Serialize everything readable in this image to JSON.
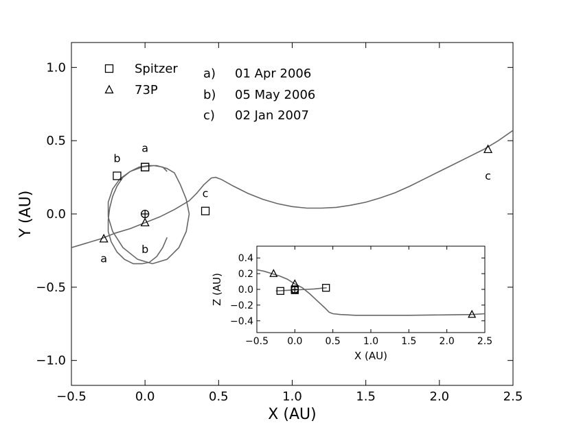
{
  "chart_data": [
    {
      "type": "line",
      "xlabel": "X (AU)",
      "ylabel": "Y (AU)",
      "xlim": [
        -0.5,
        2.5
      ],
      "ylim": [
        -1.17,
        1.17
      ],
      "xticks": [
        -0.5,
        0.0,
        0.5,
        1.0,
        1.5,
        2.0,
        2.5
      ],
      "xtick_labels": [
        "−0.5",
        "0.0",
        "0.5",
        "1.0",
        "1.5",
        "2.0",
        "2.5"
      ],
      "yticks": [
        -1.0,
        -0.5,
        0.0,
        0.5,
        1.0
      ],
      "ytick_labels": [
        "−1.0",
        "−0.5",
        "0.0",
        "0.5",
        "1.0"
      ],
      "grid": false,
      "legend": {
        "placement": "top-left",
        "entries": [
          {
            "marker": "square",
            "label": "Spitzer"
          },
          {
            "marker": "triangle",
            "label": "73P"
          }
        ],
        "dates": [
          {
            "key": "a)",
            "date": "01 Apr 2006"
          },
          {
            "key": "b)",
            "date": "05 May 2006"
          },
          {
            "key": "c)",
            "date": "02 Jan 2007"
          }
        ]
      },
      "series": [
        {
          "marker": "square",
          "x": [
            0.0,
            0.0,
            -0.19,
            0.41
          ],
          "y": [
            0.32,
            0.32,
            0.26,
            0.02
          ],
          "labels": [
            "a",
            "a",
            "b",
            "c"
          ]
        },
        {
          "marker": "triangle",
          "x": [
            -0.28,
            0.0,
            2.33
          ],
          "y": [
            -0.17,
            -0.06,
            0.44
          ],
          "labels": [
            "a",
            "b",
            "c"
          ]
        }
      ],
      "sun": {
        "x": 0.0,
        "y": 0.0
      },
      "spitzer_orbit": {
        "x": [
          0.15,
          0.12,
          0.06,
          -0.02,
          -0.1,
          -0.17,
          -0.22,
          -0.25,
          -0.25,
          -0.22,
          -0.15,
          -0.05,
          0.05,
          0.15,
          0.23,
          0.28,
          0.3,
          0.28,
          0.24,
          0.2,
          0.15,
          0.08,
          0.02,
          -0.04,
          -0.1,
          -0.15,
          -0.19,
          -0.22,
          -0.24,
          -0.25,
          -0.25,
          -0.23,
          -0.19,
          -0.14,
          -0.08,
          -0.02,
          0.03,
          0.08,
          0.12,
          0.15
        ],
        "y": [
          0.29,
          0.32,
          0.33,
          0.32,
          0.29,
          0.24,
          0.17,
          0.08,
          -0.02,
          -0.12,
          -0.23,
          -0.31,
          -0.34,
          -0.31,
          -0.23,
          -0.12,
          0.0,
          0.1,
          0.2,
          0.28,
          0.31,
          0.33,
          0.33,
          0.32,
          0.29,
          0.25,
          0.19,
          0.12,
          0.04,
          -0.04,
          -0.12,
          -0.19,
          -0.26,
          -0.31,
          -0.34,
          -0.34,
          -0.33,
          -0.29,
          -0.23,
          -0.16
        ]
      },
      "comet_path": {
        "x": [
          -0.5,
          -0.4,
          -0.3,
          -0.2,
          -0.1,
          0.0,
          0.1,
          0.2,
          0.3,
          0.35,
          0.4,
          0.45,
          0.48,
          0.52,
          0.6,
          0.7,
          0.8,
          0.9,
          1.0,
          1.1,
          1.2,
          1.3,
          1.4,
          1.5,
          1.6,
          1.7,
          1.8,
          1.9,
          2.0,
          2.1,
          2.2,
          2.3,
          2.4,
          2.5
        ],
        "y": [
          -0.23,
          -0.2,
          -0.17,
          -0.13,
          -0.1,
          -0.06,
          -0.02,
          0.03,
          0.09,
          0.14,
          0.2,
          0.245,
          0.25,
          0.235,
          0.19,
          0.14,
          0.1,
          0.07,
          0.05,
          0.04,
          0.04,
          0.045,
          0.06,
          0.08,
          0.11,
          0.145,
          0.19,
          0.24,
          0.29,
          0.34,
          0.39,
          0.44,
          0.5,
          0.57
        ]
      }
    },
    {
      "type": "line",
      "inset": true,
      "xlabel": "X (AU)",
      "ylabel": "Z (AU)",
      "xlim": [
        -0.5,
        2.5
      ],
      "ylim": [
        -0.55,
        0.55
      ],
      "xticks": [
        -0.5,
        0.0,
        0.5,
        1.0,
        1.5,
        2.0,
        2.5
      ],
      "xtick_labels": [
        "−0.5",
        "0.0",
        "0.5",
        "1.0",
        "1.5",
        "2.0",
        "2.5"
      ],
      "yticks": [
        -0.4,
        -0.2,
        0.0,
        0.2,
        0.4
      ],
      "ytick_labels": [
        "−0.4",
        "−0.2",
        "0.0",
        "0.2",
        "0.4"
      ],
      "grid": false,
      "series": [
        {
          "marker": "square",
          "x": [
            -0.19,
            0.0,
            0.0,
            0.41
          ],
          "y": [
            -0.02,
            -0.01,
            0.0,
            0.02
          ]
        },
        {
          "marker": "triangle",
          "x": [
            -0.28,
            0.0,
            2.33
          ],
          "y": [
            0.2,
            0.07,
            -0.32
          ]
        }
      ],
      "sun": {
        "x": 0.0,
        "y": 0.0
      },
      "spitzer_orbit": {
        "x": [
          -0.25,
          -0.15,
          -0.05,
          0.05,
          0.15,
          0.25,
          0.3,
          0.35,
          0.42
        ],
        "y": [
          -0.02,
          -0.015,
          -0.01,
          -0.005,
          0.0,
          0.005,
          0.01,
          0.015,
          0.02
        ]
      },
      "comet_path": {
        "x": [
          -0.5,
          -0.4,
          -0.3,
          -0.2,
          -0.1,
          0.0,
          0.1,
          0.2,
          0.3,
          0.4,
          0.45,
          0.5,
          0.6,
          0.8,
          1.0,
          1.5,
          2.0,
          2.33,
          2.5
        ],
        "y": [
          0.25,
          0.23,
          0.2,
          0.17,
          0.13,
          0.07,
          0.02,
          -0.06,
          -0.15,
          -0.24,
          -0.29,
          -0.31,
          -0.32,
          -0.33,
          -0.33,
          -0.33,
          -0.325,
          -0.32,
          -0.31
        ]
      }
    }
  ]
}
